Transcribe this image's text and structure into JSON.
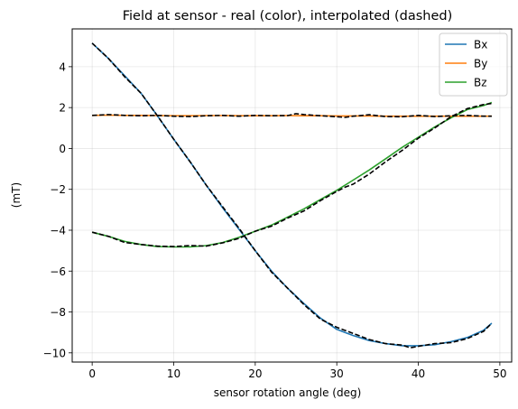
{
  "chart_data": {
    "type": "line",
    "title": "Field at sensor - real (color), interpolated (dashed)",
    "xlabel": "sensor rotation angle (deg)",
    "ylabel": "(mT)",
    "xlim": [
      -2.45,
      51.45
    ],
    "ylim": [
      -10.45,
      5.85
    ],
    "x_ticks": [
      0,
      10,
      20,
      30,
      40,
      50
    ],
    "y_ticks": [
      4,
      2,
      0,
      -2,
      -4,
      -6,
      -8,
      -10
    ],
    "x_tick_labels": [
      "0",
      "10",
      "20",
      "30",
      "40",
      "50"
    ],
    "y_tick_labels": [
      "4",
      "2",
      "0",
      "−2",
      "−4",
      "−6",
      "−8",
      "−10"
    ],
    "grid": true,
    "legend_position": "top-right",
    "x": [
      0,
      2,
      4,
      6,
      8,
      10,
      12,
      14,
      16,
      18,
      20,
      22,
      24,
      26,
      28,
      30,
      32,
      34,
      36,
      38,
      40,
      42,
      44,
      46,
      48,
      49
    ],
    "series": [
      {
        "name": "Bx",
        "color": "#1f77b4",
        "values": [
          5.15,
          4.4,
          3.55,
          2.7,
          1.6,
          0.45,
          -0.65,
          -1.8,
          -2.9,
          -3.95,
          -5.0,
          -6.0,
          -6.85,
          -7.6,
          -8.3,
          -8.85,
          -9.15,
          -9.4,
          -9.55,
          -9.65,
          -9.65,
          -9.6,
          -9.45,
          -9.25,
          -8.9,
          -8.55
        ]
      },
      {
        "name": "By",
        "color": "#ff7f0e",
        "values": [
          1.62,
          1.63,
          1.62,
          1.62,
          1.61,
          1.6,
          1.6,
          1.61,
          1.61,
          1.6,
          1.6,
          1.6,
          1.61,
          1.6,
          1.6,
          1.59,
          1.59,
          1.59,
          1.58,
          1.58,
          1.58,
          1.58,
          1.58,
          1.58,
          1.58,
          1.58
        ]
      },
      {
        "name": "Bz",
        "color": "#2ca02c",
        "values": [
          -4.1,
          -4.3,
          -4.55,
          -4.7,
          -4.8,
          -4.82,
          -4.82,
          -4.75,
          -4.6,
          -4.35,
          -4.05,
          -3.75,
          -3.35,
          -2.95,
          -2.5,
          -2.05,
          -1.55,
          -1.05,
          -0.5,
          0.05,
          0.55,
          1.05,
          1.5,
          1.9,
          2.1,
          2.25
        ]
      }
    ],
    "interpolated": [
      {
        "color": "#000000",
        "x": [
          0,
          2,
          4,
          6,
          8,
          10,
          12,
          14,
          16,
          18,
          20,
          22,
          24,
          26,
          28,
          30,
          31,
          32,
          34,
          36,
          38,
          39,
          40,
          42,
          44,
          46,
          48,
          49
        ],
        "values": [
          5.15,
          4.4,
          3.5,
          2.7,
          1.6,
          0.45,
          -0.65,
          -1.8,
          -2.85,
          -3.9,
          -5.0,
          -6.05,
          -6.85,
          -7.65,
          -8.35,
          -8.75,
          -8.9,
          -9.05,
          -9.35,
          -9.55,
          -9.62,
          -9.75,
          -9.68,
          -9.55,
          -9.5,
          -9.3,
          -8.95,
          -8.55
        ]
      },
      {
        "color": "#000000",
        "x": [
          0,
          2,
          4,
          6,
          8,
          10,
          12,
          14,
          16,
          18,
          20,
          22,
          24,
          25,
          26,
          28,
          30,
          31,
          32,
          34,
          36,
          38,
          40,
          42,
          44,
          46,
          48,
          49
        ],
        "values": [
          1.62,
          1.66,
          1.62,
          1.6,
          1.62,
          1.58,
          1.56,
          1.6,
          1.62,
          1.58,
          1.62,
          1.6,
          1.61,
          1.7,
          1.66,
          1.6,
          1.55,
          1.52,
          1.58,
          1.65,
          1.56,
          1.55,
          1.62,
          1.56,
          1.6,
          1.62,
          1.58,
          1.58
        ]
      },
      {
        "color": "#000000",
        "x": [
          0,
          2,
          4,
          6,
          8,
          10,
          12,
          14,
          16,
          18,
          20,
          22,
          24,
          26,
          28,
          30,
          31,
          32,
          34,
          36,
          38,
          40,
          42,
          44,
          46,
          48,
          49
        ],
        "values": [
          -4.1,
          -4.3,
          -4.6,
          -4.7,
          -4.78,
          -4.8,
          -4.75,
          -4.78,
          -4.62,
          -4.4,
          -4.05,
          -3.8,
          -3.4,
          -3.05,
          -2.55,
          -2.1,
          -1.9,
          -1.75,
          -1.25,
          -0.65,
          -0.1,
          0.5,
          1.0,
          1.55,
          1.95,
          2.15,
          2.2
        ]
      }
    ]
  }
}
